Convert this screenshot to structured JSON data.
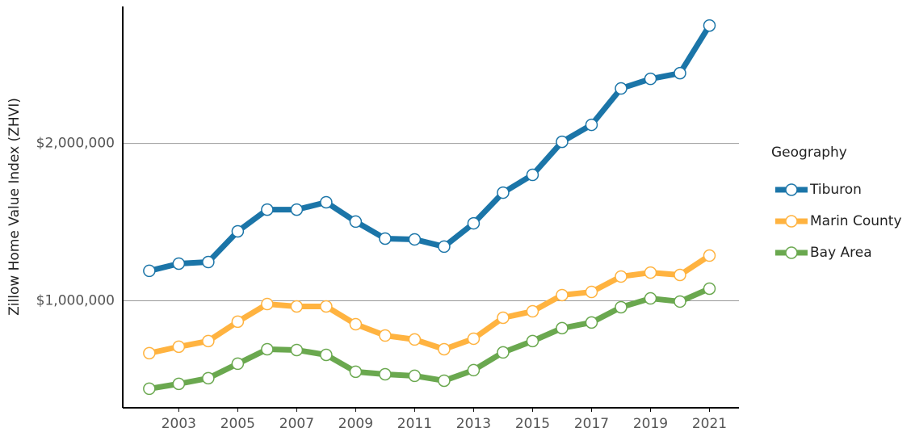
{
  "chart_data": {
    "type": "line",
    "y_label": "Zillow Home Value Index (ZHVI)",
    "legend_title": "Geography",
    "legend_position": "right",
    "x": [
      2002,
      2003,
      2004,
      2005,
      2006,
      2007,
      2008,
      2009,
      2010,
      2011,
      2012,
      2013,
      2014,
      2015,
      2016,
      2017,
      2018,
      2019,
      2020,
      2021
    ],
    "xlim": [
      2001.1,
      2022
    ],
    "xticks": [
      2003,
      2005,
      2007,
      2009,
      2011,
      2013,
      2015,
      2017,
      2019,
      2021
    ],
    "ylim": [
      320000,
      2870000
    ],
    "yticks": [
      {
        "value": 1000000,
        "label": "$1,000,000"
      },
      {
        "value": 2000000,
        "label": "$2,000,000"
      }
    ],
    "grid": true,
    "series": [
      {
        "name": "Tiburon",
        "color": "#1b75a8",
        "values": [
          1190000,
          1236000,
          1246000,
          1441000,
          1579000,
          1579000,
          1626000,
          1503000,
          1395000,
          1390000,
          1344000,
          1492000,
          1687000,
          1800000,
          2010000,
          2118000,
          2349000,
          2410000,
          2446000,
          2749000
        ]
      },
      {
        "name": "Marin County",
        "color": "#ffb340",
        "values": [
          667000,
          708000,
          744000,
          867000,
          979000,
          964000,
          964000,
          851000,
          779000,
          754000,
          692000,
          759000,
          892000,
          933000,
          1036000,
          1056000,
          1154000,
          1179000,
          1164000,
          1287000
        ]
      },
      {
        "name": "Bay Area",
        "color": "#6aa84f",
        "values": [
          441000,
          472000,
          508000,
          600000,
          692000,
          687000,
          656000,
          549000,
          533000,
          523000,
          492000,
          559000,
          672000,
          744000,
          826000,
          862000,
          959000,
          1015000,
          995000,
          1077000
        ]
      }
    ]
  }
}
